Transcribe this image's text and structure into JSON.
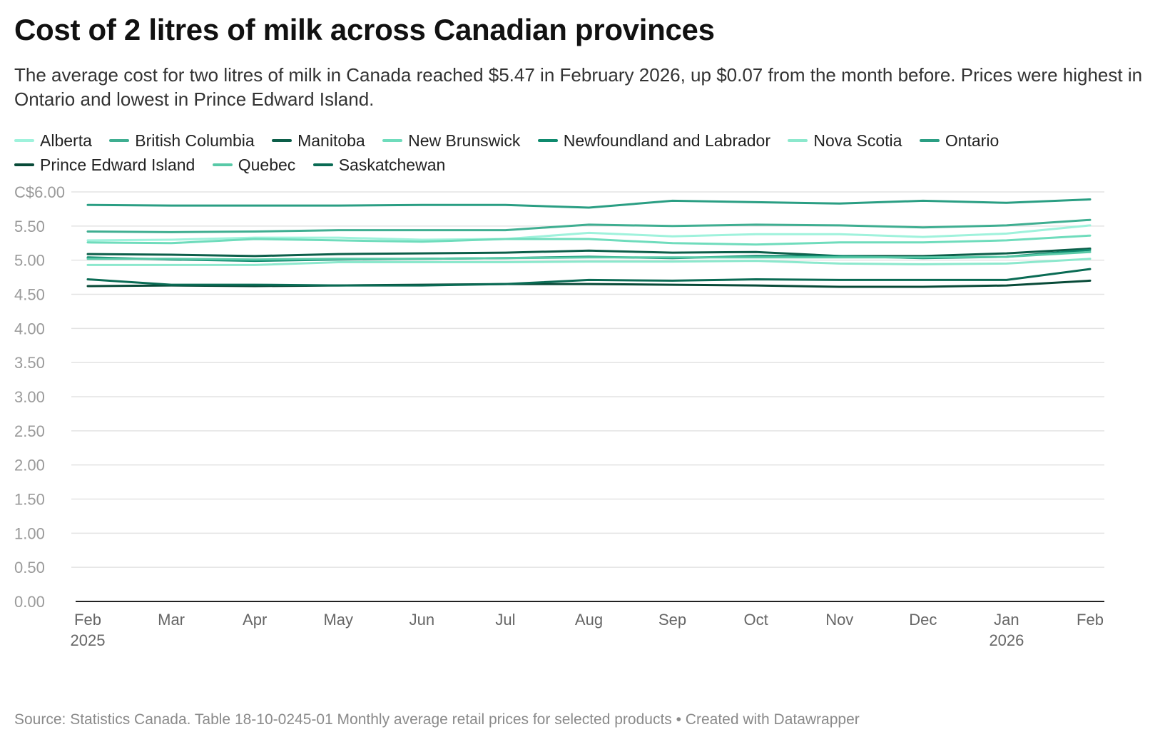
{
  "header": {
    "title": "Cost of 2 litres of milk across Canadian provinces",
    "subtitle": "The average cost for two litres of milk in Canada reached $5.47 in February 2026, up $0.07 from the month before. Prices were highest in Ontario and lowest in Prince Edward Island."
  },
  "footer": {
    "source": "Source: Statistics Canada. Table 18-10-0245-01 Monthly average retail prices for selected products • Created with Datawrapper"
  },
  "chart_data": {
    "type": "line",
    "x": [
      "Feb",
      "Mar",
      "Apr",
      "May",
      "Jun",
      "Jul",
      "Aug",
      "Sep",
      "Oct",
      "Nov",
      "Dec",
      "Jan",
      "Feb"
    ],
    "x_year_labels": [
      "2025",
      "",
      "",
      "",
      "",
      "",
      "",
      "",
      "",
      "",
      "",
      "2026",
      ""
    ],
    "ylim": [
      0,
      6
    ],
    "y_ticks": [
      0,
      0.5,
      1,
      1.5,
      2,
      2.5,
      3,
      3.5,
      4,
      4.5,
      5,
      5.5,
      6
    ],
    "y_tick_labels": [
      "0.00",
      "0.50",
      "1.00",
      "1.50",
      "2.00",
      "2.50",
      "3.00",
      "3.50",
      "4.00",
      "4.50",
      "5.00",
      "5.50",
      "C$6.00"
    ],
    "grid": true,
    "legend_position": "top",
    "series": [
      {
        "name": "Alberta",
        "color": "#9ff2dc",
        "values": [
          5.29,
          5.3,
          5.33,
          5.33,
          5.3,
          5.31,
          5.4,
          5.35,
          5.38,
          5.38,
          5.34,
          5.39,
          5.51
        ]
      },
      {
        "name": "British Columbia",
        "color": "#3fae91",
        "values": [
          5.42,
          5.41,
          5.42,
          5.44,
          5.44,
          5.44,
          5.52,
          5.5,
          5.52,
          5.51,
          5.48,
          5.51,
          5.59
        ]
      },
      {
        "name": "Manitoba",
        "color": "#0c5e49",
        "values": [
          5.09,
          5.08,
          5.06,
          5.09,
          5.1,
          5.11,
          5.14,
          5.11,
          5.12,
          5.06,
          5.06,
          5.1,
          5.17
        ]
      },
      {
        "name": "New Brunswick",
        "color": "#6fdcbc",
        "values": [
          5.26,
          5.25,
          5.31,
          5.29,
          5.27,
          5.31,
          5.31,
          5.25,
          5.23,
          5.26,
          5.26,
          5.29,
          5.36
        ]
      },
      {
        "name": "Newfoundland and Labrador",
        "color": "#0f8a6e",
        "values": [
          5.04,
          5.01,
          4.99,
          5.01,
          5.02,
          5.03,
          5.05,
          5.03,
          5.06,
          5.06,
          5.03,
          5.05,
          5.15
        ]
      },
      {
        "name": "Nova Scotia",
        "color": "#8ce8cd",
        "values": [
          4.93,
          4.93,
          4.93,
          4.97,
          4.97,
          4.97,
          4.98,
          4.98,
          4.99,
          4.95,
          4.94,
          4.95,
          5.02
        ]
      },
      {
        "name": "Ontario",
        "color": "#2a9e83",
        "values": [
          5.81,
          5.8,
          5.8,
          5.8,
          5.81,
          5.81,
          5.77,
          5.87,
          5.85,
          5.83,
          5.87,
          5.84,
          5.89
        ]
      },
      {
        "name": "Prince Edward Island",
        "color": "#084a38",
        "values": [
          4.62,
          4.63,
          4.62,
          4.63,
          4.64,
          4.65,
          4.65,
          4.64,
          4.63,
          4.61,
          4.61,
          4.63,
          4.7
        ]
      },
      {
        "name": "Quebec",
        "color": "#58c9a7",
        "values": [
          5.02,
          5.02,
          5.01,
          5.02,
          5.02,
          5.03,
          5.04,
          5.04,
          5.04,
          5.04,
          5.04,
          5.05,
          5.12
        ]
      },
      {
        "name": "Saskatchewan",
        "color": "#0a6b54",
        "values": [
          4.72,
          4.64,
          4.64,
          4.63,
          4.63,
          4.65,
          4.71,
          4.7,
          4.72,
          4.71,
          4.71,
          4.71,
          4.87
        ]
      }
    ]
  }
}
